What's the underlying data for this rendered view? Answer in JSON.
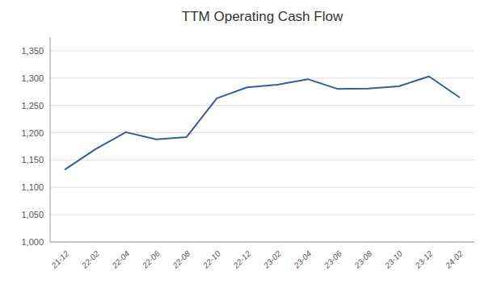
{
  "chart_data": {
    "type": "line",
    "title": "TTM Operating Cash Flow",
    "categories": [
      "21-12",
      "22-02",
      "22-04",
      "22-06",
      "22-08",
      "22-10",
      "22-12",
      "23-02",
      "23-04",
      "23-06",
      "23-08",
      "23-10",
      "23-12",
      "24-02"
    ],
    "values": [
      1133,
      1170,
      1201,
      1188,
      1192,
      1263,
      1283,
      1288,
      1298,
      1280,
      1281,
      1285,
      1303,
      1265
    ],
    "color": "#2E5FA3",
    "ylim": [
      1000,
      1375
    ],
    "yticks": [
      {
        "value": 1000,
        "label": "1,000"
      },
      {
        "value": 1050,
        "label": "1,050"
      },
      {
        "value": 1100,
        "label": "1,100"
      },
      {
        "value": 1150,
        "label": "1,150"
      },
      {
        "value": 1200,
        "label": "1,200"
      },
      {
        "value": 1250,
        "label": "1,250"
      },
      {
        "value": 1300,
        "label": "1,300"
      },
      {
        "value": 1350,
        "label": "1,350"
      }
    ],
    "grid": true
  }
}
